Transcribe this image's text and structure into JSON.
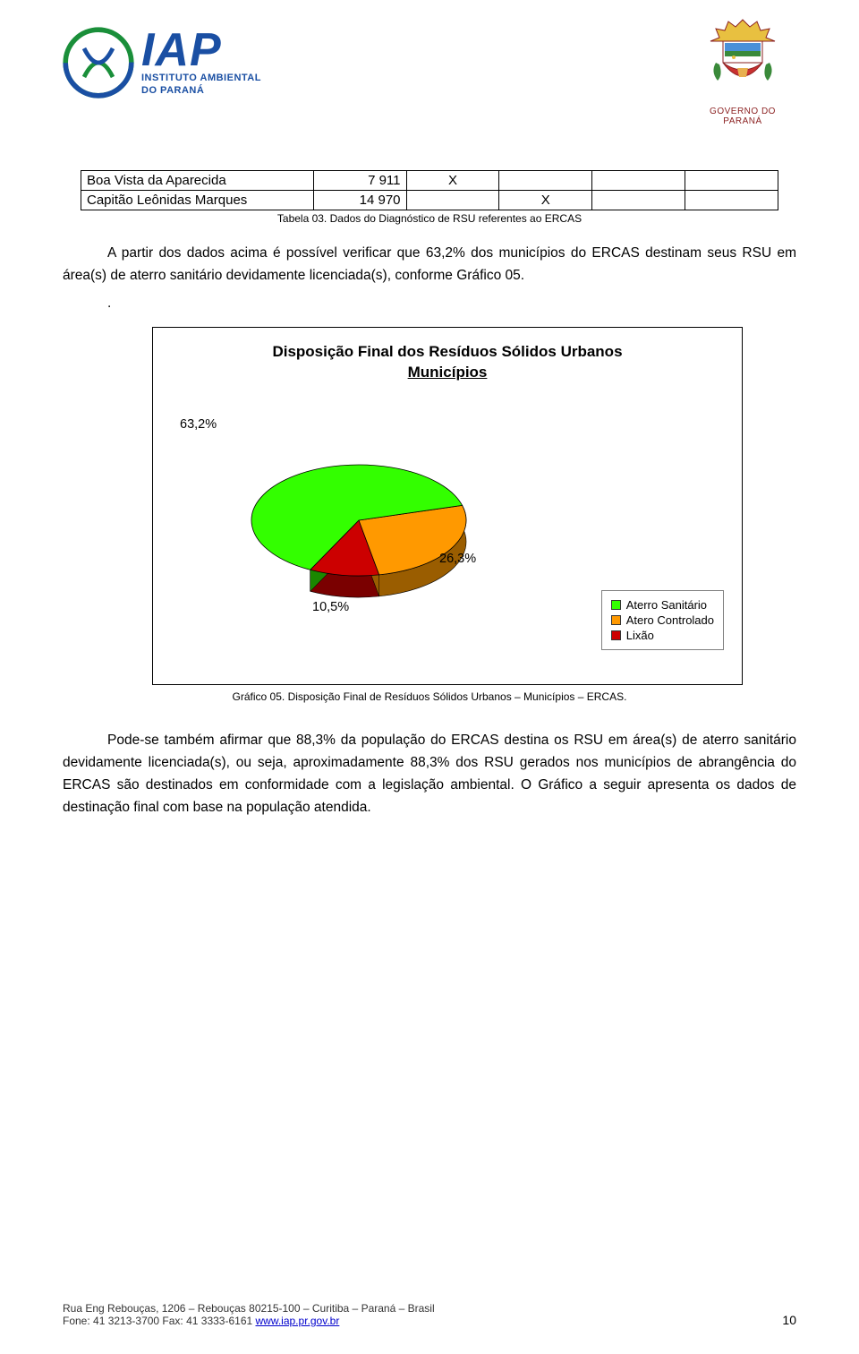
{
  "header": {
    "logo_main": "IAP",
    "logo_sub1": "INSTITUTO AMBIENTAL",
    "logo_sub2": "DO PARANÁ",
    "gov_text": "GOVERNO DO PARANÁ"
  },
  "table": {
    "rows": [
      {
        "name": "Boa Vista da Aparecida",
        "value": "7 911",
        "x_col": 0
      },
      {
        "name": "Capitão Leônidas Marques",
        "value": "14 970",
        "x_col": 1
      }
    ],
    "caption": "Tabela 03. Dados do Diagnóstico de RSU referentes ao ERCAS",
    "x_marker": "X"
  },
  "para1": "A partir dos dados acima é possível verificar que 63,2% dos municípios do ERCAS destinam seus RSU em área(s) de aterro sanitário devidamente licenciada(s), conforme Gráfico 05.",
  "dot": ".",
  "chart": {
    "title_line1": "Disposição Final dos Resíduos Sólidos Urbanos",
    "title_line2": "Municípios",
    "slices": [
      {
        "label": "63,2%",
        "value": 63.2,
        "color": "#33ff00",
        "side_color": "#1a8800"
      },
      {
        "label": "26,3%",
        "value": 26.3,
        "color": "#ff9900",
        "side_color": "#9a5d00"
      },
      {
        "label": "10,5%",
        "value": 10.5,
        "color": "#cc0000",
        "side_color": "#7a0000"
      }
    ],
    "legend": [
      {
        "label": "Aterro Sanitário",
        "color": "#33ff00"
      },
      {
        "label": "Atero Controlado",
        "color": "#ff9900"
      },
      {
        "label": "Lixão",
        "color": "#cc0000"
      }
    ],
    "caption": "Gráfico 05. Disposição Final de Resíduos Sólidos Urbanos – Municípios – ERCAS."
  },
  "para2": "Pode-se também afirmar que 88,3% da população do ERCAS destina os RSU em área(s) de aterro sanitário devidamente licenciada(s), ou seja, aproximadamente 88,3% dos RSU gerados nos municípios de abrangência do ERCAS são destinados em conformidade com a legislação ambiental.  O Gráfico a seguir apresenta os dados de destinação final com base na população atendida.",
  "footer": {
    "line1": "Rua Eng Rebouças, 1206 – Rebouças 80215-100 – Curitiba – Paraná – Brasil",
    "line2_prefix": "Fone: 41 3213-3700  Fax: 41 3333-6161 ",
    "link": "www.iap.pr.gov.br",
    "page": "10"
  }
}
